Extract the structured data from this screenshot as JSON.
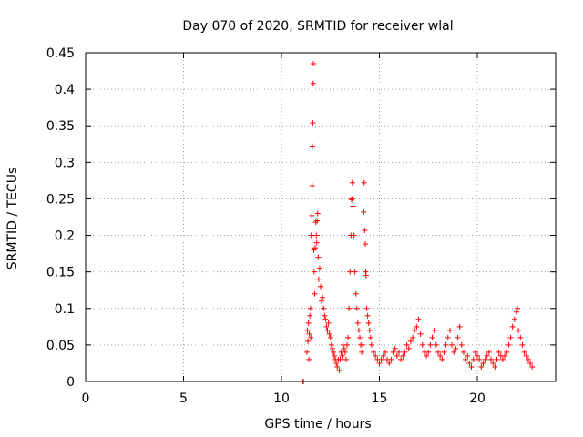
{
  "chart_data": {
    "type": "scatter",
    "title": "Day 070 of 2020, SRMTID for receiver wlal",
    "xlabel": "GPS time / hours",
    "ylabel": "SRMTID / TECUs",
    "xlim": [
      0,
      24
    ],
    "ylim": [
      0,
      0.45
    ],
    "x_ticks": [
      0,
      5,
      10,
      15,
      20
    ],
    "y_ticks": [
      0,
      0.05,
      0.1,
      0.15,
      0.2,
      0.25,
      0.3,
      0.35,
      0.4,
      0.45
    ],
    "x_tick_labels": [
      "0",
      "5",
      "10",
      "15",
      "20"
    ],
    "y_tick_labels": [
      "0",
      "0.05",
      "0.1",
      "0.15",
      "0.2",
      "0.25",
      "0.3",
      "0.35",
      "0.4",
      "0.45"
    ],
    "grid": true,
    "marker": "+",
    "series": [
      {
        "name": "SRMTID",
        "color": "#ff0000",
        "points": [
          [
            11.1,
            0.0
          ],
          [
            11.12,
            0.0
          ],
          [
            11.3,
            0.04
          ],
          [
            11.32,
            0.07
          ],
          [
            11.35,
            0.055
          ],
          [
            11.38,
            0.08
          ],
          [
            11.4,
            0.03
          ],
          [
            11.42,
            0.065
          ],
          [
            11.45,
            0.09
          ],
          [
            11.48,
            0.1
          ],
          [
            11.5,
            0.06
          ],
          [
            11.52,
            0.2
          ],
          [
            11.55,
            0.227
          ],
          [
            11.57,
            0.268
          ],
          [
            11.58,
            0.322
          ],
          [
            11.6,
            0.354
          ],
          [
            11.62,
            0.408
          ],
          [
            11.63,
            0.435
          ],
          [
            11.65,
            0.18
          ],
          [
            11.67,
            0.15
          ],
          [
            11.7,
            0.12
          ],
          [
            11.72,
            0.183
          ],
          [
            11.75,
            0.218
          ],
          [
            11.78,
            0.2
          ],
          [
            11.8,
            0.19
          ],
          [
            11.82,
            0.22
          ],
          [
            11.85,
            0.23
          ],
          [
            11.88,
            0.17
          ],
          [
            11.9,
            0.14
          ],
          [
            11.95,
            0.155
          ],
          [
            12.0,
            0.13
          ],
          [
            12.05,
            0.11
          ],
          [
            12.1,
            0.115
          ],
          [
            12.15,
            0.1
          ],
          [
            12.2,
            0.09
          ],
          [
            12.25,
            0.085
          ],
          [
            12.3,
            0.075
          ],
          [
            12.35,
            0.07
          ],
          [
            12.4,
            0.08
          ],
          [
            12.45,
            0.065
          ],
          [
            12.5,
            0.06
          ],
          [
            12.55,
            0.05
          ],
          [
            12.6,
            0.045
          ],
          [
            12.65,
            0.04
          ],
          [
            12.7,
            0.035
          ],
          [
            12.75,
            0.03
          ],
          [
            12.8,
            0.025
          ],
          [
            12.85,
            0.02
          ],
          [
            12.9,
            0.03
          ],
          [
            12.95,
            0.015
          ],
          [
            13.0,
            0.03
          ],
          [
            13.05,
            0.04
          ],
          [
            13.1,
            0.035
          ],
          [
            13.15,
            0.05
          ],
          [
            13.2,
            0.045
          ],
          [
            13.25,
            0.04
          ],
          [
            13.3,
            0.03
          ],
          [
            13.35,
            0.05
          ],
          [
            13.4,
            0.06
          ],
          [
            13.45,
            0.1
          ],
          [
            13.5,
            0.15
          ],
          [
            13.55,
            0.2
          ],
          [
            13.58,
            0.249
          ],
          [
            13.6,
            0.25
          ],
          [
            13.62,
            0.272
          ],
          [
            13.65,
            0.24
          ],
          [
            13.7,
            0.2
          ],
          [
            13.75,
            0.15
          ],
          [
            13.8,
            0.12
          ],
          [
            13.85,
            0.1
          ],
          [
            13.9,
            0.08
          ],
          [
            13.95,
            0.07
          ],
          [
            14.0,
            0.06
          ],
          [
            14.05,
            0.05
          ],
          [
            14.1,
            0.04
          ],
          [
            14.15,
            0.05
          ],
          [
            14.2,
            0.232
          ],
          [
            14.22,
            0.272
          ],
          [
            14.25,
            0.207
          ],
          [
            14.28,
            0.188
          ],
          [
            14.3,
            0.15
          ],
          [
            14.32,
            0.145
          ],
          [
            14.35,
            0.1
          ],
          [
            14.4,
            0.09
          ],
          [
            14.45,
            0.08
          ],
          [
            14.5,
            0.07
          ],
          [
            14.55,
            0.06
          ],
          [
            14.6,
            0.05
          ],
          [
            14.7,
            0.04
          ],
          [
            14.8,
            0.035
          ],
          [
            14.9,
            0.03
          ],
          [
            15.0,
            0.025
          ],
          [
            15.1,
            0.03
          ],
          [
            15.2,
            0.035
          ],
          [
            15.3,
            0.04
          ],
          [
            15.4,
            0.03
          ],
          [
            15.5,
            0.025
          ],
          [
            15.6,
            0.03
          ],
          [
            15.7,
            0.04
          ],
          [
            15.8,
            0.045
          ],
          [
            15.9,
            0.035
          ],
          [
            16.0,
            0.04
          ],
          [
            16.1,
            0.03
          ],
          [
            16.2,
            0.035
          ],
          [
            16.3,
            0.04
          ],
          [
            16.4,
            0.05
          ],
          [
            16.5,
            0.045
          ],
          [
            16.6,
            0.055
          ],
          [
            16.7,
            0.06
          ],
          [
            16.8,
            0.07
          ],
          [
            16.9,
            0.075
          ],
          [
            17.0,
            0.085
          ],
          [
            17.1,
            0.065
          ],
          [
            17.2,
            0.05
          ],
          [
            17.3,
            0.04
          ],
          [
            17.4,
            0.035
          ],
          [
            17.5,
            0.04
          ],
          [
            17.6,
            0.05
          ],
          [
            17.7,
            0.06
          ],
          [
            17.8,
            0.07
          ],
          [
            17.9,
            0.05
          ],
          [
            18.0,
            0.04
          ],
          [
            18.1,
            0.035
          ],
          [
            18.2,
            0.03
          ],
          [
            18.3,
            0.04
          ],
          [
            18.4,
            0.05
          ],
          [
            18.5,
            0.06
          ],
          [
            18.6,
            0.07
          ],
          [
            18.7,
            0.05
          ],
          [
            18.8,
            0.04
          ],
          [
            18.9,
            0.045
          ],
          [
            19.0,
            0.06
          ],
          [
            19.1,
            0.075
          ],
          [
            19.2,
            0.05
          ],
          [
            19.3,
            0.04
          ],
          [
            19.4,
            0.03
          ],
          [
            19.5,
            0.035
          ],
          [
            19.6,
            0.025
          ],
          [
            19.7,
            0.02
          ],
          [
            19.8,
            0.03
          ],
          [
            19.9,
            0.04
          ],
          [
            20.0,
            0.035
          ],
          [
            20.1,
            0.03
          ],
          [
            20.2,
            0.02
          ],
          [
            20.3,
            0.025
          ],
          [
            20.4,
            0.03
          ],
          [
            20.5,
            0.035
          ],
          [
            20.6,
            0.04
          ],
          [
            20.7,
            0.03
          ],
          [
            20.8,
            0.025
          ],
          [
            20.9,
            0.02
          ],
          [
            21.0,
            0.03
          ],
          [
            21.1,
            0.04
          ],
          [
            21.2,
            0.035
          ],
          [
            21.3,
            0.03
          ],
          [
            21.4,
            0.035
          ],
          [
            21.5,
            0.04
          ],
          [
            21.6,
            0.05
          ],
          [
            21.7,
            0.06
          ],
          [
            21.8,
            0.075
          ],
          [
            21.9,
            0.085
          ],
          [
            22.0,
            0.095
          ],
          [
            22.05,
            0.1
          ],
          [
            22.1,
            0.07
          ],
          [
            22.2,
            0.06
          ],
          [
            22.3,
            0.05
          ],
          [
            22.4,
            0.04
          ],
          [
            22.5,
            0.035
          ],
          [
            22.6,
            0.03
          ],
          [
            22.7,
            0.025
          ],
          [
            22.8,
            0.02
          ]
        ]
      }
    ]
  }
}
